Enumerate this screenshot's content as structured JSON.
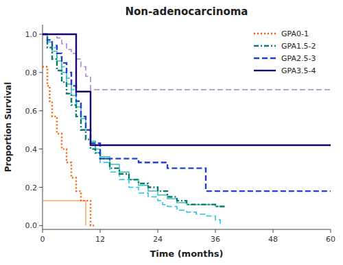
{
  "chart_data": {
    "type": "step",
    "title": "Non-adenocarcinoma",
    "x_label": "Time (months)",
    "y_label": "Proportion Survival",
    "xlim": [
      0,
      60
    ],
    "ylim": [
      -0.02,
      1.05
    ],
    "xticks": [
      0,
      12,
      24,
      36,
      48,
      60
    ],
    "yticks": [
      {
        "value": 0.0,
        "label": "0.0"
      },
      0.2,
      0.4,
      0.6,
      0.8,
      {
        "value": 1.0,
        "label": "1.0"
      }
    ],
    "grid": false,
    "legend": "upper right",
    "series": [
      {
        "color": "#00BFDF",
        "line_style": "dashed",
        "x": [
          0,
          1,
          2,
          3,
          4,
          5,
          6,
          7,
          8,
          9,
          10,
          11,
          12,
          14,
          16,
          18,
          20,
          22,
          24,
          25,
          26,
          28,
          30,
          32,
          34,
          36,
          37
        ],
        "values": [
          1.0,
          0.97,
          0.93,
          0.88,
          0.83,
          0.77,
          0.71,
          0.64,
          0.57,
          0.5,
          0.44,
          0.38,
          0.33,
          0.28,
          0.24,
          0.2,
          0.17,
          0.15,
          0.13,
          0.11,
          0.1,
          0.08,
          0.07,
          0.06,
          0.05,
          0.03,
          0.0
        ]
      },
      {
        "color": "#9B6FCC",
        "line_style": "dashed",
        "x": [
          0,
          1,
          2,
          3,
          4,
          5,
          6,
          7,
          8,
          9,
          10,
          11,
          12,
          14,
          60
        ],
        "values": [
          1.0,
          1.0,
          1.0,
          0.98,
          0.95,
          0.92,
          0.9,
          0.87,
          0.83,
          0.78,
          0.71,
          0.71,
          0.71,
          0.71,
          0.71
        ]
      },
      {
        "color": "#20B8A8",
        "line_style": "solid",
        "x": [
          0,
          1,
          2,
          3,
          4,
          5,
          6,
          7,
          8,
          9,
          10,
          11,
          12,
          14,
          16,
          18,
          20,
          22,
          24,
          26,
          28,
          30,
          32,
          34,
          36,
          37
        ],
        "values": [
          1.0,
          0.96,
          0.91,
          0.86,
          0.8,
          0.74,
          0.68,
          0.62,
          0.56,
          0.5,
          0.44,
          0.4,
          0.36,
          0.32,
          0.28,
          0.24,
          0.21,
          0.18,
          0.16,
          0.14,
          0.12,
          0.11,
          0.11,
          0.11,
          0.1,
          0.1
        ]
      },
      {
        "color": "#FF9966",
        "line_style": "solid",
        "x": [
          0,
          0.3,
          0.5,
          8,
          9
        ],
        "values": [
          0.13,
          0.13,
          0.13,
          0.13,
          0.0
        ]
      },
      {
        "name": "GPA0-1",
        "color": "#FF5500",
        "line_style": "dotted",
        "x": [
          0,
          0.3,
          1,
          1.5,
          2,
          3,
          4,
          5,
          6,
          7,
          8,
          9,
          10,
          11
        ],
        "values": [
          0.83,
          0.83,
          0.73,
          0.65,
          0.57,
          0.48,
          0.4,
          0.33,
          0.25,
          0.18,
          0.13,
          0.13,
          0.0,
          0.0
        ]
      },
      {
        "name": "GPA1.5-2",
        "color": "#007B6E",
        "line_style": "dashdot",
        "x": [
          0,
          1,
          2,
          3,
          4,
          5,
          6,
          7,
          8,
          9,
          10,
          11,
          12,
          14,
          16,
          18,
          20,
          22,
          24,
          26,
          28,
          30,
          32,
          34,
          36,
          37,
          38
        ],
        "values": [
          1.0,
          0.93,
          0.87,
          0.81,
          0.75,
          0.69,
          0.63,
          0.57,
          0.5,
          0.45,
          0.4,
          0.38,
          0.35,
          0.3,
          0.27,
          0.24,
          0.22,
          0.2,
          0.18,
          0.15,
          0.13,
          0.11,
          0.11,
          0.11,
          0.1,
          0.1,
          0.1
        ]
      },
      {
        "name": "GPA2.5-3",
        "color": "#1C3FD4",
        "line_style": "dashed",
        "x": [
          0,
          1,
          2,
          3,
          4,
          5,
          6,
          7,
          8,
          9,
          10,
          12,
          14,
          16,
          18,
          20,
          22,
          24,
          26,
          28,
          30,
          32,
          34,
          35,
          36,
          37,
          60
        ],
        "values": [
          1.0,
          0.97,
          0.94,
          0.9,
          0.85,
          0.8,
          0.73,
          0.65,
          0.57,
          0.5,
          0.43,
          0.35,
          0.35,
          0.35,
          0.35,
          0.33,
          0.33,
          0.33,
          0.3,
          0.3,
          0.3,
          0.3,
          0.18,
          0.18,
          0.18,
          0.18,
          0.18
        ]
      },
      {
        "name": "GPA3.5-4",
        "color": "#1A006E",
        "line_style": "solid",
        "x": [
          0,
          6,
          7,
          9,
          10,
          60
        ],
        "values": [
          1.0,
          1.0,
          0.7,
          0.7,
          0.42,
          0.42
        ]
      }
    ]
  }
}
